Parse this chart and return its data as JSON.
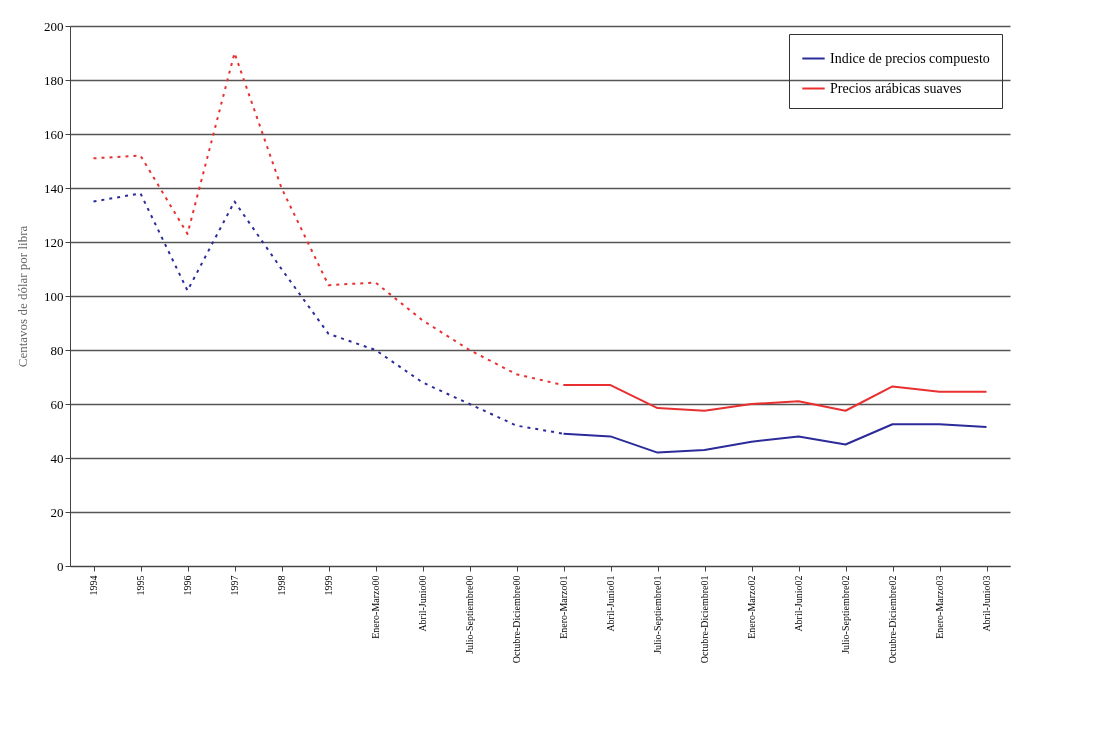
{
  "chart_data": {
    "type": "line",
    "ylabel": "Centavos de dólar por libra",
    "categories": [
      "1994",
      "1995",
      "1996",
      "1997",
      "1998",
      "1999",
      "Enero-Marzo00",
      "Abril-Junio00",
      "Julio-Septiembre00",
      "Octubre-Diciembre00",
      "Enero-Marzo01",
      "Abril-Junio01",
      "Julio-Septiembre01",
      "Octubre-Diciembre01",
      "Enero-Marzo02",
      "Abril-Junio02",
      "Julio-Septiembre02",
      "Octubre-Diciembre02",
      "Enero-Marzo03",
      "Abril-Junio03"
    ],
    "series": [
      {
        "color": "#2b2b9a",
        "line_style": "dotted",
        "values": [
          135,
          138,
          102,
          135,
          110,
          86,
          80,
          68,
          60,
          52,
          49,
          null,
          null,
          null,
          null,
          null,
          null,
          null,
          null,
          null
        ]
      },
      {
        "color": "#e83030",
        "line_style": "dotted",
        "values": [
          151,
          152,
          123,
          190,
          140,
          104,
          105,
          91,
          80,
          71,
          67,
          null,
          null,
          null,
          null,
          null,
          null,
          null,
          null,
          null
        ]
      },
      {
        "name": "Indice de precios compuesto",
        "color": "#2b2b9a",
        "line_style": "solid",
        "values": [
          null,
          null,
          null,
          null,
          null,
          null,
          null,
          null,
          null,
          null,
          49,
          48,
          42,
          43,
          46,
          48,
          45,
          52.5,
          52.5,
          51.5
        ]
      },
      {
        "name": "Precios arábicas suaves",
        "color": "#e83030",
        "line_style": "solid",
        "values": [
          null,
          null,
          null,
          null,
          null,
          null,
          null,
          null,
          null,
          null,
          67,
          67,
          58.5,
          57.5,
          60,
          61,
          57.5,
          66.5,
          64.5,
          64.5
        ]
      }
    ],
    "ylim": [
      0,
      200
    ],
    "yticks": [
      0,
      20,
      40,
      60,
      80,
      100,
      120,
      140,
      160,
      180,
      200
    ],
    "grid": "y",
    "legend": "top right",
    "marker": "none"
  }
}
